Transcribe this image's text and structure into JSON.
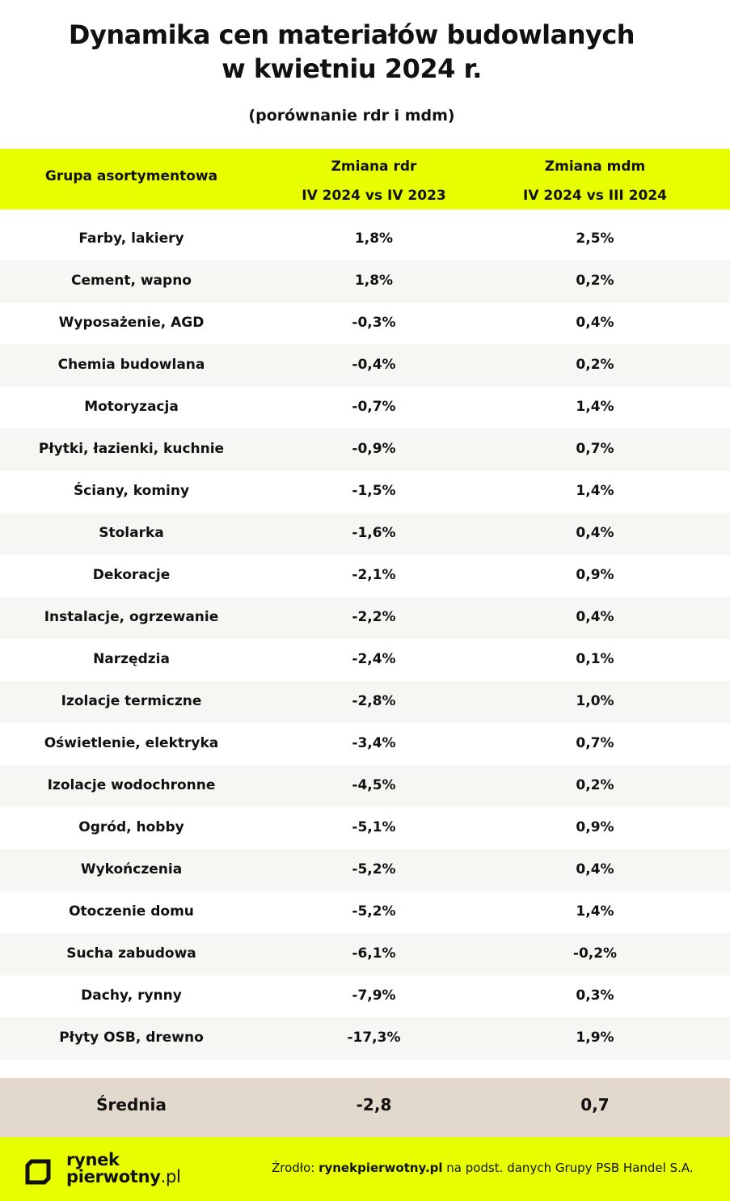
{
  "title_line1": "Dynamika cen materiałów budowlanych",
  "title_line2": "w kwietniu 2024 r.",
  "subtitle": "(porównanie  rdr i mdm)",
  "header": {
    "col1": "Grupa asortymentowa",
    "col2_line1": "Zmiana rdr",
    "col2_line2": "IV 2024 vs IV 2023",
    "col3_line1": "Zmiana mdm",
    "col3_line2": "IV 2024  vs III 2024"
  },
  "rows": [
    {
      "group": "Farby, lakiery",
      "rdr": "1,8%",
      "mdm": "2,5%"
    },
    {
      "group": "Cement, wapno",
      "rdr": "1,8%",
      "mdm": "0,2%"
    },
    {
      "group": "Wyposażenie, AGD",
      "rdr": "-0,3%",
      "mdm": "0,4%"
    },
    {
      "group": "Chemia budowlana",
      "rdr": "-0,4%",
      "mdm": "0,2%"
    },
    {
      "group": "Motoryzacja",
      "rdr": "-0,7%",
      "mdm": "1,4%"
    },
    {
      "group": "Płytki, łazienki, kuchnie",
      "rdr": "-0,9%",
      "mdm": "0,7%"
    },
    {
      "group": "Ściany, kominy",
      "rdr": "-1,5%",
      "mdm": "1,4%"
    },
    {
      "group": "Stolarka",
      "rdr": "-1,6%",
      "mdm": "0,4%"
    },
    {
      "group": "Dekoracje",
      "rdr": "-2,1%",
      "mdm": "0,9%"
    },
    {
      "group": "Instalacje, ogrzewanie",
      "rdr": "-2,2%",
      "mdm": "0,4%"
    },
    {
      "group": "Narzędzia",
      "rdr": "-2,4%",
      "mdm": "0,1%"
    },
    {
      "group": "Izolacje termiczne",
      "rdr": "-2,8%",
      "mdm": "1,0%"
    },
    {
      "group": "Oświetlenie, elektryka",
      "rdr": "-3,4%",
      "mdm": "0,7%"
    },
    {
      "group": "Izolacje wodochronne",
      "rdr": "-4,5%",
      "mdm": "0,2%"
    },
    {
      "group": "Ogród, hobby",
      "rdr": "-5,1%",
      "mdm": "0,9%"
    },
    {
      "group": "Wykończenia",
      "rdr": "-5,2%",
      "mdm": "0,4%"
    },
    {
      "group": "Otoczenie domu",
      "rdr": "-5,2%",
      "mdm": "1,4%"
    },
    {
      "group": "Sucha zabudowa",
      "rdr": "-6,1%",
      "mdm": "-0,2%"
    },
    {
      "group": "Dachy, rynny",
      "rdr": "-7,9%",
      "mdm": "0,3%"
    },
    {
      "group": "Płyty OSB, drewno",
      "rdr": "-17,3%",
      "mdm": "1,9%"
    }
  ],
  "average": {
    "label": "Średnia",
    "rdr": "-2,8",
    "mdm": "0,7"
  },
  "footer": {
    "logo_word1": "rynek",
    "logo_word2": "pierwotny",
    "logo_suffix": ".pl",
    "source_prefix": "Źrodło: ",
    "source_site": "rynekpierwotny.pl",
    "source_suffix": " na podst. danych Grupy PSB Handel S.A."
  },
  "colors": {
    "accent": "#e8ff00",
    "average_row": "#e3d8cc",
    "row_stripe": "#f6f6f2"
  }
}
